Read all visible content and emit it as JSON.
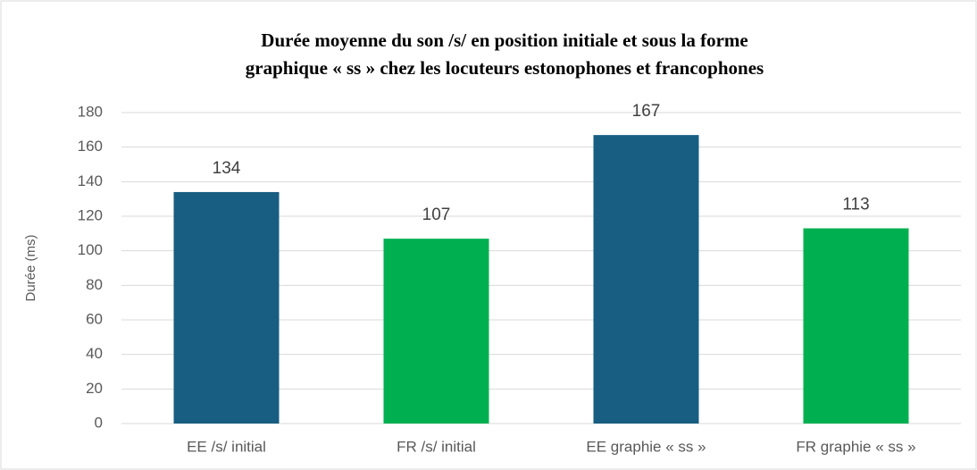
{
  "chart_data": {
    "type": "bar",
    "title": [
      "Durée moyenne du son /s/ en position initiale et sous la forme",
      "graphique « ss » chez les locuteurs estonophones et francophones"
    ],
    "y_label": "Durée (ms)",
    "categories": [
      "EE /s/ initial",
      "FR /s/ initial",
      "EE graphie « ss »",
      "FR graphie « ss »"
    ],
    "values": [
      134,
      107,
      167,
      113
    ],
    "colors": [
      "#175e82",
      "#00b050",
      "#175e82",
      "#00b050"
    ],
    "ylim": [
      0,
      180
    ],
    "yticks": [
      0,
      20,
      40,
      60,
      80,
      100,
      120,
      140,
      160,
      180
    ],
    "grid": true
  }
}
